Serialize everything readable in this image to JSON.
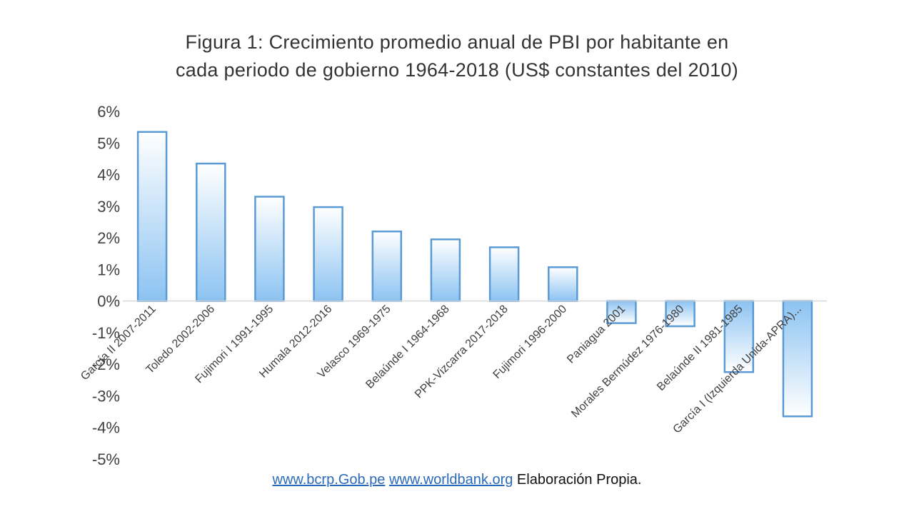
{
  "chart_data": {
    "type": "bar",
    "title": "Figura 1: Crecimiento promedio anual de PBI por habitante en cada periodo de gobierno 1964-2018 (US$ constantes del 2010)",
    "title_lines": [
      "Figura 1: Crecimiento promedio anual de PBI por habitante en",
      "cada periodo de gobierno 1964-2018 (US$ constantes del 2010)"
    ],
    "xlabel": "",
    "ylabel": "",
    "categories": [
      "García II 2007-2011",
      "Toledo 2002-2006",
      "Fujimori I 1991-1995",
      "Humala 2012-2016",
      "Velasco 1969-1975",
      "Belaúnde I 1964-1968",
      "PPK-Vizcarra 2017-2018",
      "Fujimori 1996-2000",
      "Paniagua 2001",
      "Morales Bermúdez 1976-1980",
      "Belaúnde II 1981-1985",
      "García I (Izquierda Unida-APRA)..."
    ],
    "values": [
      5.35,
      4.35,
      3.3,
      2.97,
      2.2,
      1.95,
      1.7,
      1.07,
      -0.7,
      -0.8,
      -2.25,
      -3.65
    ],
    "value_unit": "%",
    "ylim": [
      -5,
      6
    ],
    "yticks": [
      6,
      5,
      4,
      3,
      2,
      1,
      0,
      -1,
      -2,
      -3,
      -4,
      -5
    ],
    "ytick_labels": [
      "6%",
      "5%",
      "4%",
      "3%",
      "2%",
      "1%",
      "0%",
      "-1%",
      "-2%",
      "-3%",
      "-4%",
      "-5%"
    ],
    "grid": false,
    "legend": "none",
    "colors": {
      "bar_fill_top": "#ffffff",
      "bar_fill_bottom": "#8cc3f2",
      "bar_border": "#5b9bd5",
      "axis_line": "#d9d9d9",
      "text": "#404040"
    }
  },
  "source": {
    "link1": "www.bcrp.Gob.pe",
    "link2": "www.worldbank.org",
    "text": "Elaboración Propia."
  }
}
